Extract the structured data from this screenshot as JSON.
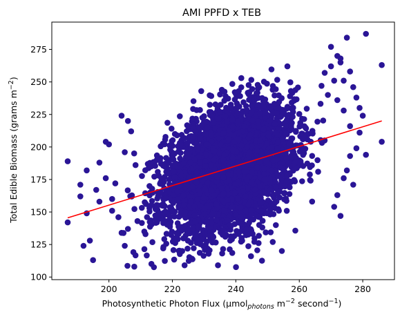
{
  "chart_data": {
    "type": "scatter",
    "title": "AMI PPFD x TEB",
    "xlabel": {
      "prefix": "Photosynthetic Photon Flux (µmol",
      "sub": "photons",
      "mid": " m",
      "sup1": "−2",
      "mid2": " second",
      "sup2": "−1",
      "suffix": ")"
    },
    "ylabel": {
      "prefix": "Total Edible Biomass (grams m",
      "sup": "−2",
      "suffix": ")"
    },
    "xlim": [
      182,
      290
    ],
    "ylim": [
      98,
      296
    ],
    "xticks": [
      200,
      220,
      240,
      260,
      280
    ],
    "yticks": [
      100,
      125,
      150,
      175,
      200,
      225,
      250,
      275
    ],
    "grid": false,
    "colors": {
      "points": "#2a1596",
      "fit": "#ff0000"
    },
    "cloud": {
      "x_mean": 238,
      "x_sd": 10,
      "y_mean": 183,
      "y_sd": 24,
      "corr": 0.35,
      "n": 4200
    },
    "fit_line": {
      "x": [
        187,
        286
      ],
      "y": [
        145.5,
        220
      ]
    },
    "outliers": {
      "x": [
        187,
        187,
        191,
        191,
        192,
        193,
        194,
        195,
        193,
        196,
        197,
        199,
        200,
        201,
        202,
        203,
        197,
        199,
        201,
        204,
        205,
        206,
        208,
        205,
        207,
        209,
        204,
        206,
        270,
        272,
        273,
        275,
        276,
        274,
        277,
        278,
        279,
        280,
        281,
        286,
        286,
        278,
        276,
        274,
        272,
        271,
        273,
        270,
        268,
        276,
        279,
        281,
        275,
        277,
        272,
        274,
        271,
        269,
        273,
        267
      ],
      "y": [
        142,
        189,
        171,
        162,
        124,
        149,
        128,
        113,
        182,
        167,
        158,
        204,
        202,
        160,
        172,
        146,
        188,
        176,
        151,
        134,
        124,
        137,
        108,
        196,
        212,
        143,
        224,
        220,
        277,
        270,
        265,
        284,
        258,
        251,
        246,
        238,
        230,
        224,
        287,
        263,
        204,
        199,
        193,
        176,
        163,
        154,
        147,
        262,
        257,
        216,
        211,
        194,
        182,
        171,
        236,
        228,
        251,
        240,
        268,
        247
      ]
    }
  }
}
